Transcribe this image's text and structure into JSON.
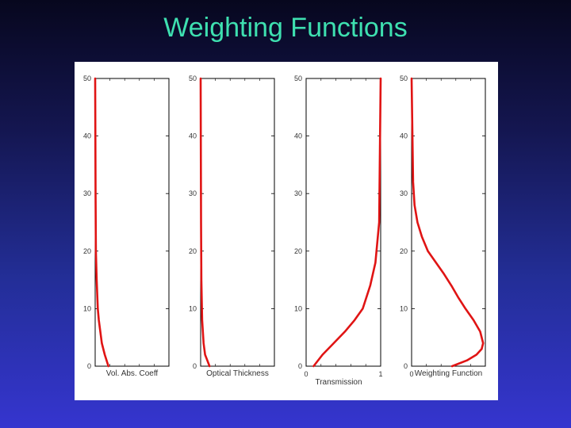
{
  "slide": {
    "title": "Weighting Functions"
  },
  "colors": {
    "curve": "#e01414",
    "title": "#3ee0b0",
    "axes": "#000000"
  },
  "chart_data": [
    {
      "type": "line",
      "xlabel": "Vol. Abs. Coeff",
      "ylim": [
        0,
        50
      ],
      "yticks": [
        "0",
        "10",
        "20",
        "30",
        "40",
        "50"
      ],
      "xticks": [],
      "series": [
        {
          "x": [
            0.18,
            0.13,
            0.09,
            0.07,
            0.05,
            0.035,
            0.02,
            0.01,
            0.005,
            0.0
          ],
          "y": [
            0,
            2,
            4,
            6,
            8,
            10,
            15,
            20,
            30,
            50
          ]
        }
      ]
    },
    {
      "type": "line",
      "xlabel": "Optical Thickness",
      "ylim": [
        0,
        50
      ],
      "yticks": [
        "0",
        "10",
        "20",
        "30",
        "40",
        "50"
      ],
      "xticks": [],
      "series": [
        {
          "x": [
            0.12,
            0.09,
            0.06,
            0.04,
            0.03,
            0.02,
            0.01,
            0.005,
            0.0
          ],
          "y": [
            0,
            1,
            2,
            4,
            6,
            8,
            15,
            25,
            50
          ]
        }
      ]
    },
    {
      "type": "line",
      "xlabel": "Transmission",
      "ylim": [
        0,
        50
      ],
      "xlim": [
        0,
        1
      ],
      "yticks": [
        "0",
        "10",
        "20",
        "30",
        "40",
        "50"
      ],
      "xticks": [
        "0",
        "1"
      ],
      "series": [
        {
          "x": [
            0.1,
            0.22,
            0.37,
            0.52,
            0.65,
            0.76,
            0.86,
            0.93,
            0.98,
            1.0
          ],
          "y": [
            0,
            2,
            4,
            6,
            8,
            10,
            14,
            18,
            25,
            50
          ]
        }
      ]
    },
    {
      "type": "line",
      "xlabel": "Weighting Function",
      "ylim": [
        0,
        50
      ],
      "yticks": [
        "0",
        "10",
        "20",
        "30",
        "40",
        "50"
      ],
      "xticks": [
        "0"
      ],
      "series": [
        {
          "x": [
            0.55,
            0.75,
            0.88,
            0.95,
            0.97,
            0.93,
            0.84,
            0.73,
            0.63,
            0.54,
            0.44,
            0.33,
            0.22,
            0.14,
            0.08,
            0.04,
            0.02,
            0.0
          ],
          "y": [
            0,
            1,
            2,
            3,
            4,
            6,
            8,
            10,
            12,
            14,
            16,
            18,
            20,
            22.5,
            25,
            28,
            32,
            50
          ]
        }
      ]
    }
  ]
}
